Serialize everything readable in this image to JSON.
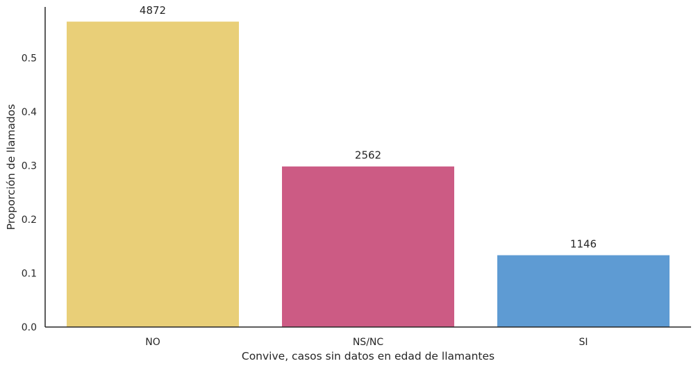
{
  "chart_data": {
    "type": "bar",
    "title": "",
    "xlabel": "Convive, casos sin datos en edad de llamantes",
    "ylabel": "Proporción de llamados",
    "categories": [
      "NO",
      "NS/NC",
      "SI"
    ],
    "values": [
      0.5677,
      0.2985,
      0.1335
    ],
    "data_labels": [
      "4872",
      "2562",
      "1146"
    ],
    "colors": [
      "#e9cf78",
      "#cc5b84",
      "#5e9bd3"
    ],
    "ylim": [
      0,
      0.595
    ],
    "yticks": [
      0.0,
      0.1,
      0.2,
      0.3,
      0.4,
      0.5
    ],
    "ytick_labels": [
      "0.0",
      "0.1",
      "0.2",
      "0.3",
      "0.4",
      "0.5"
    ],
    "grid": false,
    "legend": "none"
  }
}
